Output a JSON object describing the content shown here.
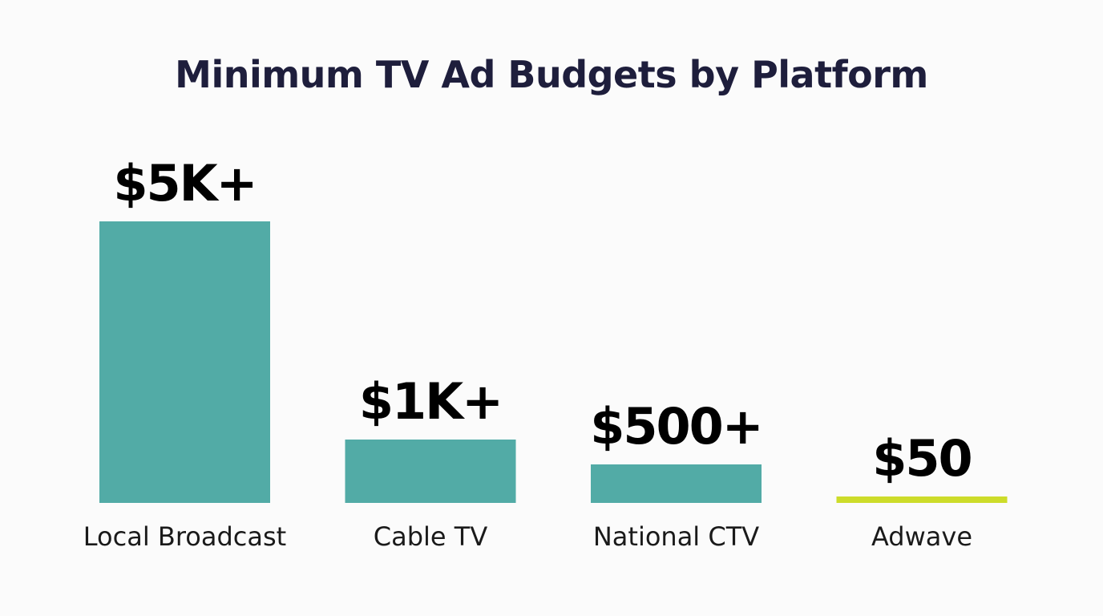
{
  "chart_data": {
    "type": "bar",
    "title": "Minimum TV Ad Budgets by Platform",
    "categories": [
      "Local Broadcast",
      "Cable TV",
      "National CTV",
      "Adwave"
    ],
    "values": [
      5000,
      1000,
      500,
      50
    ],
    "data_labels": [
      "$5K+",
      "$1K+",
      "$500+",
      "$50"
    ],
    "colors": [
      "#52aba6",
      "#52aba6",
      "#52aba6",
      "#cddc2a"
    ],
    "xlabel": "",
    "ylabel": "",
    "ylim": [
      0,
      5000
    ],
    "grid": false,
    "legend": "none"
  }
}
